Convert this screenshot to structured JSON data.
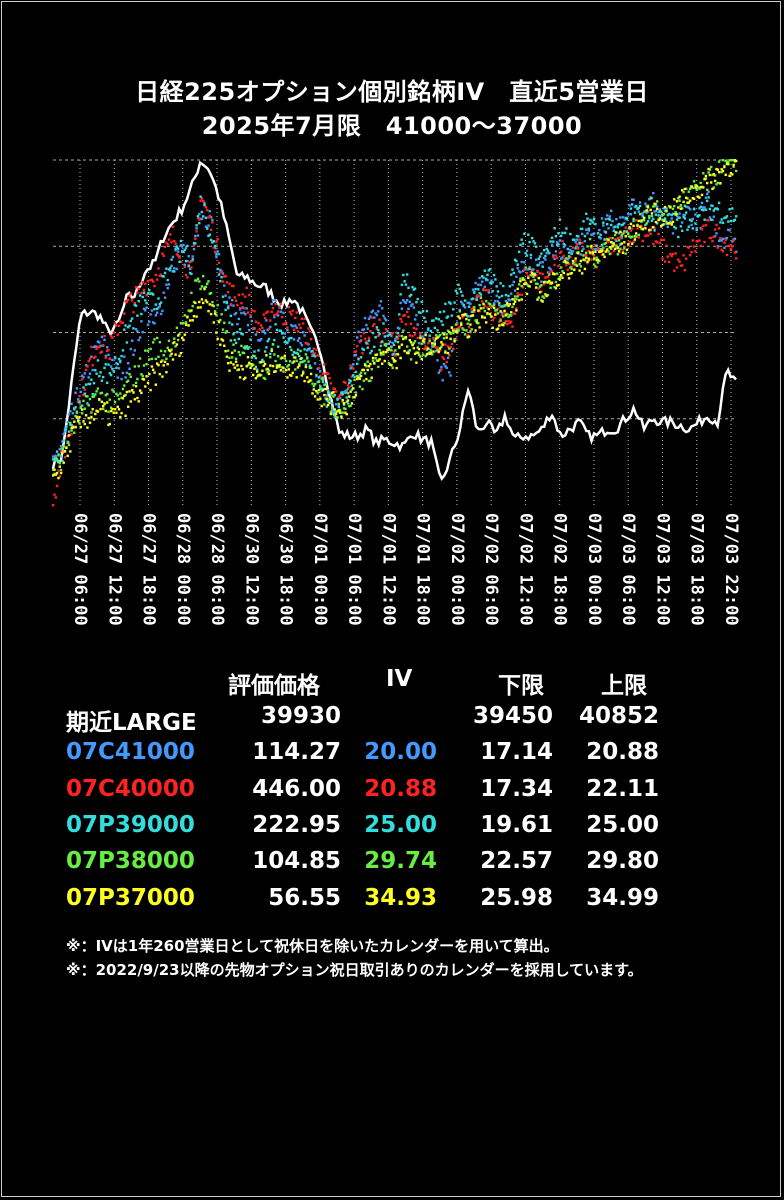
{
  "title_line1": "日経225オプション個別銘柄IV　直近5営業日",
  "title_line2": "2025年7月限　41000～37000",
  "chart_data": {
    "type": "line",
    "x_tick_labels": [
      "06/27 06:00",
      "06/27 12:00",
      "06/27 18:00",
      "06/28 00:00",
      "06/28 06:00",
      "06/30 12:00",
      "06/30 18:00",
      "07/01 00:00",
      "07/01 06:00",
      "07/01 12:00",
      "07/01 18:00",
      "07/02 00:00",
      "07/02 06:00",
      "07/02 12:00",
      "07/02 18:00",
      "07/03 00:00",
      "07/03 06:00",
      "07/03 12:00",
      "07/03 18:00",
      "07/03 22:00"
    ],
    "y_tick_labels": [],
    "grid": true,
    "background": "#000000",
    "series": [
      {
        "name": "期近LARGE",
        "color": "#ffffff",
        "style": "line",
        "values": [
          0.12,
          0.14,
          0.35,
          0.55,
          0.56,
          0.55,
          0.5,
          0.52,
          0.6,
          0.61,
          0.68,
          0.7,
          0.78,
          0.82,
          0.86,
          0.92,
          1.0,
          0.97,
          0.89,
          0.78,
          0.66,
          0.66,
          0.64,
          0.63,
          0.6,
          0.58,
          0.6,
          0.56,
          0.5,
          0.45,
          0.32,
          0.21,
          0.2,
          0.2,
          0.22,
          0.18,
          0.19,
          0.18,
          0.17,
          0.21,
          0.19,
          0.18,
          0.06,
          0.13,
          0.21,
          0.34,
          0.21,
          0.24,
          0.2,
          0.26,
          0.19,
          0.2,
          0.2,
          0.22,
          0.27,
          0.2,
          0.22,
          0.24,
          0.2,
          0.2,
          0.22,
          0.22,
          0.25,
          0.28,
          0.22,
          0.25,
          0.24,
          0.24,
          0.23,
          0.22,
          0.24,
          0.26,
          0.24,
          0.39,
          0.35
        ]
      },
      {
        "name": "07C41000",
        "color": "#4499ff",
        "style": "dots",
        "values": [
          0.12,
          0.18,
          0.26,
          0.34,
          0.4,
          0.47,
          0.44,
          0.38,
          0.41,
          0.48,
          0.56,
          0.52,
          0.61,
          0.7,
          0.74,
          0.68,
          0.86,
          0.82,
          0.72,
          0.6,
          0.53,
          0.55,
          0.5,
          0.52,
          0.58,
          0.52,
          0.5,
          0.48,
          0.42,
          0.36,
          0.3,
          0.28,
          0.35,
          0.48,
          0.52,
          0.58,
          0.55,
          0.46,
          0.62,
          0.56,
          0.46,
          0.48,
          0.38,
          0.4,
          0.55,
          0.58,
          0.62,
          0.66,
          0.6,
          0.58,
          0.62,
          0.72,
          0.7,
          0.68,
          0.72,
          0.75,
          0.72,
          0.74,
          0.8,
          0.76,
          0.84,
          0.82,
          0.8,
          0.9,
          0.86,
          0.88,
          0.84,
          0.8,
          0.84,
          0.85,
          0.83,
          0.88,
          0.78,
          0.78,
          0.76
        ]
      },
      {
        "name": "07C40000",
        "color": "#ff2222",
        "style": "dots",
        "values": [
          0.02,
          0.14,
          0.22,
          0.32,
          0.42,
          0.48,
          0.44,
          0.52,
          0.58,
          0.6,
          0.64,
          0.66,
          0.72,
          0.78,
          0.73,
          0.66,
          0.9,
          0.82,
          0.72,
          0.62,
          0.6,
          0.6,
          0.52,
          0.52,
          0.58,
          0.55,
          0.54,
          0.52,
          0.47,
          0.4,
          0.34,
          0.3,
          0.36,
          0.45,
          0.5,
          0.52,
          0.48,
          0.46,
          0.54,
          0.52,
          0.45,
          0.46,
          0.42,
          0.45,
          0.55,
          0.52,
          0.58,
          0.6,
          0.55,
          0.52,
          0.56,
          0.66,
          0.68,
          0.64,
          0.68,
          0.74,
          0.7,
          0.74,
          0.72,
          0.72,
          0.76,
          0.74,
          0.78,
          0.8,
          0.8,
          0.78,
          0.74,
          0.72,
          0.68,
          0.74,
          0.76,
          0.8,
          0.78,
          0.76,
          0.75
        ]
      },
      {
        "name": "07P39000",
        "color": "#33dddd",
        "style": "dots",
        "values": [
          0.1,
          0.16,
          0.24,
          0.3,
          0.34,
          0.4,
          0.38,
          0.42,
          0.5,
          0.56,
          0.6,
          0.58,
          0.64,
          0.7,
          0.74,
          0.7,
          0.88,
          0.8,
          0.68,
          0.56,
          0.48,
          0.48,
          0.42,
          0.44,
          0.5,
          0.46,
          0.46,
          0.44,
          0.42,
          0.36,
          0.3,
          0.3,
          0.32,
          0.4,
          0.44,
          0.48,
          0.5,
          0.46,
          0.66,
          0.62,
          0.56,
          0.5,
          0.54,
          0.56,
          0.62,
          0.56,
          0.62,
          0.66,
          0.64,
          0.6,
          0.68,
          0.76,
          0.74,
          0.7,
          0.76,
          0.8,
          0.76,
          0.78,
          0.82,
          0.78,
          0.8,
          0.78,
          0.8,
          0.86,
          0.84,
          0.82,
          0.84,
          0.82,
          0.8,
          0.84,
          0.83,
          0.86,
          0.86,
          0.84,
          0.84
        ]
      },
      {
        "name": "07P38000",
        "color": "#66ee44",
        "style": "dots",
        "values": [
          0.1,
          0.14,
          0.22,
          0.26,
          0.3,
          0.32,
          0.3,
          0.3,
          0.34,
          0.38,
          0.42,
          0.46,
          0.44,
          0.48,
          0.5,
          0.6,
          0.66,
          0.62,
          0.54,
          0.46,
          0.42,
          0.44,
          0.4,
          0.4,
          0.44,
          0.42,
          0.42,
          0.42,
          0.38,
          0.34,
          0.3,
          0.28,
          0.3,
          0.36,
          0.38,
          0.42,
          0.44,
          0.42,
          0.48,
          0.44,
          0.46,
          0.46,
          0.46,
          0.48,
          0.54,
          0.52,
          0.56,
          0.58,
          0.56,
          0.56,
          0.6,
          0.66,
          0.66,
          0.62,
          0.64,
          0.7,
          0.7,
          0.7,
          0.74,
          0.72,
          0.76,
          0.76,
          0.76,
          0.8,
          0.84,
          0.86,
          0.84,
          0.84,
          0.88,
          0.9,
          0.92,
          0.94,
          0.96,
          0.98,
          1.0
        ]
      },
      {
        "name": "07P37000",
        "color": "#ffff22",
        "style": "dots",
        "values": [
          0.08,
          0.12,
          0.2,
          0.24,
          0.26,
          0.28,
          0.26,
          0.26,
          0.3,
          0.32,
          0.34,
          0.38,
          0.4,
          0.44,
          0.48,
          0.56,
          0.6,
          0.58,
          0.5,
          0.42,
          0.4,
          0.4,
          0.38,
          0.4,
          0.42,
          0.4,
          0.4,
          0.4,
          0.36,
          0.32,
          0.3,
          0.28,
          0.3,
          0.36,
          0.38,
          0.42,
          0.44,
          0.42,
          0.46,
          0.44,
          0.46,
          0.46,
          0.46,
          0.48,
          0.52,
          0.52,
          0.54,
          0.56,
          0.54,
          0.56,
          0.58,
          0.64,
          0.64,
          0.62,
          0.64,
          0.68,
          0.68,
          0.7,
          0.72,
          0.72,
          0.74,
          0.76,
          0.76,
          0.8,
          0.82,
          0.84,
          0.84,
          0.84,
          0.88,
          0.9,
          0.92,
          0.94,
          0.96,
          0.98,
          1.0
        ]
      }
    ]
  },
  "table": {
    "headers": {
      "price": "評価価格",
      "iv": "IV",
      "lower": "下限",
      "upper": "上限"
    },
    "rows": [
      {
        "name": "期近LARGE",
        "color": "#ffffff",
        "iv_color": "#ffffff",
        "price": "39930",
        "iv": "",
        "lower": "39450",
        "upper": "40852"
      },
      {
        "name": "07C41000",
        "color": "#4499ff",
        "iv_color": "#4499ff",
        "price": "114.27",
        "iv": "20.00",
        "lower": "17.14",
        "upper": "20.88"
      },
      {
        "name": "07C40000",
        "color": "#ff2222",
        "iv_color": "#ff2222",
        "price": "446.00",
        "iv": "20.88",
        "lower": "17.34",
        "upper": "22.11"
      },
      {
        "name": "07P39000",
        "color": "#33dddd",
        "iv_color": "#33dddd",
        "price": "222.95",
        "iv": "25.00",
        "lower": "19.61",
        "upper": "25.00"
      },
      {
        "name": "07P38000",
        "color": "#66ee44",
        "iv_color": "#66ee44",
        "price": "104.85",
        "iv": "29.74",
        "lower": "22.57",
        "upper": "29.80"
      },
      {
        "name": "07P37000",
        "color": "#ffff22",
        "iv_color": "#ffff22",
        "price": "56.55",
        "iv": "34.93",
        "lower": "25.98",
        "upper": "34.99"
      }
    ]
  },
  "notes": [
    "※：IVは1年260営業日として祝休日を除いたカレンダーを用いて算出。",
    "※：2022/9/23以降の先物オプション祝日取引ありのカレンダーを採用しています。"
  ]
}
